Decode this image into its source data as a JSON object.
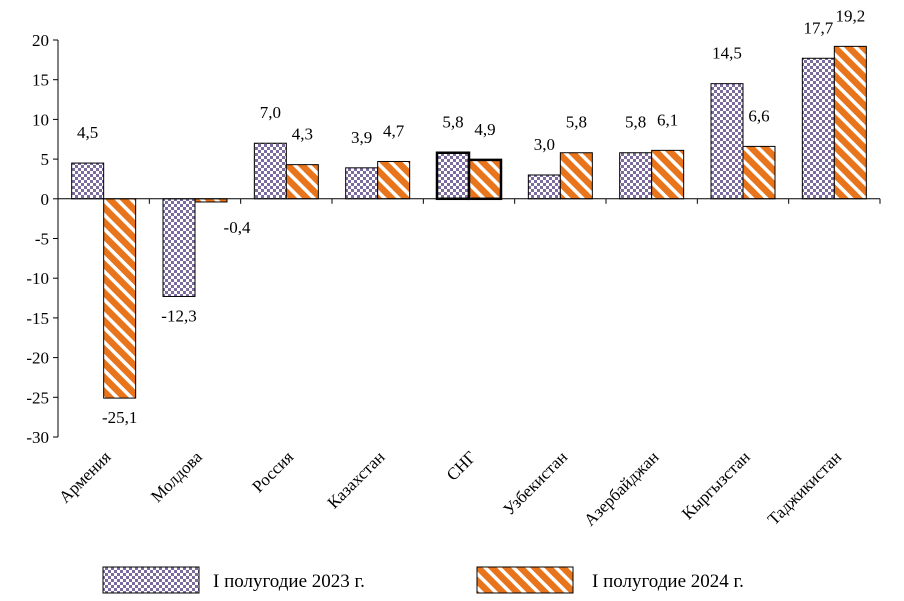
{
  "chart_data": {
    "type": "bar",
    "categories": [
      "Армения",
      "Молдова",
      "Россия",
      "Казахстан",
      "СНГ",
      "Узбекистан",
      "Азербайджан",
      "Кыргызстан",
      "Таджикистан"
    ],
    "series": [
      {
        "name": "I полугодие 2023 г.",
        "values": [
          4.5,
          -12.3,
          7.0,
          3.9,
          5.8,
          3.0,
          5.8,
          14.5,
          17.7
        ],
        "labels": [
          "4,5",
          "-12,3",
          "7,0",
          "3,9",
          "5,8",
          "3,0",
          "5,8",
          "14,5",
          "17,7"
        ],
        "color": "#7b6b9e",
        "pattern": "checker"
      },
      {
        "name": "I полугодие 2024 г.",
        "values": [
          -25.1,
          -0.4,
          4.3,
          4.7,
          4.9,
          5.8,
          6.1,
          6.6,
          19.2
        ],
        "labels": [
          "-25,1",
          "-0,4",
          "4,3",
          "4,7",
          "4,9",
          "5,8",
          "6,1",
          "6,6",
          "19,2"
        ],
        "color": "#e8741c",
        "pattern": "diagonal-stripes"
      }
    ],
    "highlight_category": "СНГ",
    "yticks": [
      20,
      15,
      10,
      5,
      0,
      -5,
      -10,
      -15,
      -20,
      -25,
      -30
    ],
    "ytick_labels": [
      "20",
      "15",
      "10",
      "5",
      "0",
      "-5",
      "-10",
      "-15",
      "-20",
      "-25",
      "-30"
    ],
    "ylim": [
      -30,
      20
    ],
    "grid": false,
    "legend_position": "bottom",
    "title": "",
    "xlabel": "",
    "ylabel": ""
  }
}
